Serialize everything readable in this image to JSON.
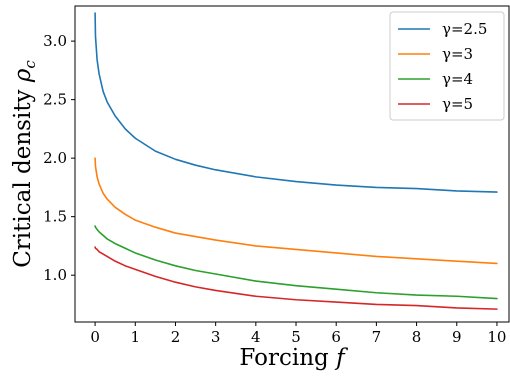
{
  "chart_data": {
    "type": "line",
    "xlabel": "Forcing",
    "xlabel_var": "f",
    "ylabel": "Critical density",
    "ylabel_var": "ρ",
    "ylabel_sub": "c",
    "xlim": [
      -0.5,
      10.3
    ],
    "ylim": [
      0.6,
      3.3
    ],
    "xticks": [
      "0",
      "1",
      "2",
      "3",
      "4",
      "5",
      "6",
      "7",
      "8",
      "9",
      "10"
    ],
    "yticks": [
      "1.0",
      "1.5",
      "2.0",
      "2.5",
      "3.0"
    ],
    "grid": false,
    "legend_position": "top-right",
    "x": [
      0,
      0.01,
      0.05,
      0.1,
      0.2,
      0.3,
      0.5,
      0.75,
      1,
      1.5,
      2,
      2.5,
      3,
      4,
      5,
      6,
      7,
      8,
      9,
      10
    ],
    "series": [
      {
        "name": "γ=2.5",
        "color": "#1f77b4",
        "values": [
          3.24,
          3.04,
          2.84,
          2.72,
          2.57,
          2.48,
          2.36,
          2.25,
          2.17,
          2.06,
          1.99,
          1.94,
          1.9,
          1.84,
          1.8,
          1.77,
          1.75,
          1.74,
          1.72,
          1.71
        ]
      },
      {
        "name": "γ=3",
        "color": "#ff7f0e",
        "values": [
          2.0,
          1.93,
          1.84,
          1.78,
          1.7,
          1.65,
          1.58,
          1.52,
          1.47,
          1.41,
          1.36,
          1.33,
          1.3,
          1.25,
          1.22,
          1.19,
          1.16,
          1.14,
          1.12,
          1.1
        ]
      },
      {
        "name": "γ=4",
        "color": "#2ca02c",
        "values": [
          1.42,
          1.41,
          1.39,
          1.37,
          1.34,
          1.31,
          1.27,
          1.23,
          1.19,
          1.13,
          1.08,
          1.04,
          1.01,
          0.95,
          0.91,
          0.88,
          0.85,
          0.83,
          0.82,
          0.8
        ]
      },
      {
        "name": "γ=5",
        "color": "#d62728",
        "values": [
          1.24,
          1.23,
          1.22,
          1.2,
          1.18,
          1.16,
          1.12,
          1.08,
          1.05,
          0.99,
          0.94,
          0.9,
          0.87,
          0.82,
          0.79,
          0.77,
          0.75,
          0.74,
          0.72,
          0.71
        ]
      }
    ]
  }
}
